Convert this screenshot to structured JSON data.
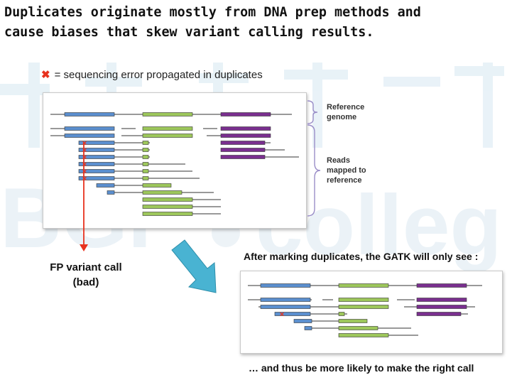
{
  "title": "Duplicates originate mostly from DNA prep methods and\ncause biases that skew variant calling results.",
  "legend": {
    "marker": "✖",
    "text": "= sequencing error propagated in duplicates"
  },
  "labels": {
    "reference_genome": "Reference\ngenome",
    "reads_mapped": "Reads\nmapped to\nreference",
    "fp_call": "FP variant call\n(bad)",
    "after_marking": "After marking duplicates, the GATK will only see :",
    "conclusion": "… and thus be more likely to make the right call"
  },
  "colors": {
    "blue": "#5b8fcf",
    "green": "#9dc75b",
    "purple": "#7a2f8f",
    "red": "#e8321e",
    "arrow_teal": "#49b3d2",
    "brace": "#9b8ec8"
  },
  "watermark": "BGI college"
}
